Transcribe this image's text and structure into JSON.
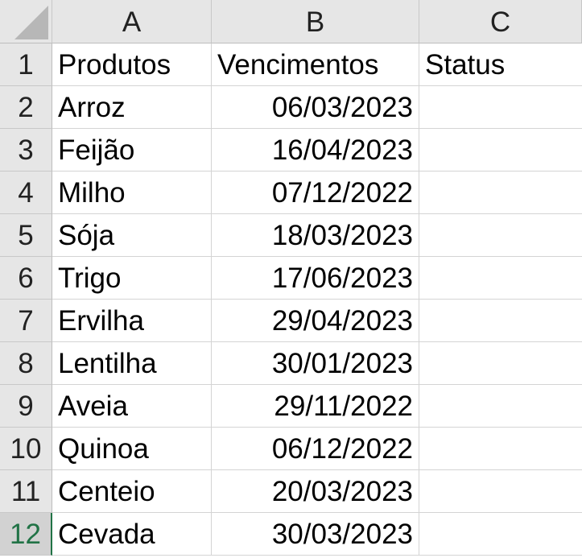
{
  "columns": [
    "A",
    "B",
    "C"
  ],
  "active_row": "12",
  "rows": [
    {
      "num": "1",
      "a": "Produtos",
      "b": "Vencimentos",
      "c": "Status"
    },
    {
      "num": "2",
      "a": "Arroz",
      "b": "06/03/2023",
      "c": ""
    },
    {
      "num": "3",
      "a": "Feijão",
      "b": "16/04/2023",
      "c": ""
    },
    {
      "num": "4",
      "a": "Milho",
      "b": "07/12/2022",
      "c": ""
    },
    {
      "num": "5",
      "a": "Sója",
      "b": "18/03/2023",
      "c": ""
    },
    {
      "num": "6",
      "a": "Trigo",
      "b": "17/06/2023",
      "c": ""
    },
    {
      "num": "7",
      "a": "Ervilha",
      "b": "29/04/2023",
      "c": ""
    },
    {
      "num": "8",
      "a": "Lentilha",
      "b": "30/01/2023",
      "c": ""
    },
    {
      "num": "9",
      "a": "Aveia",
      "b": "29/11/2022",
      "c": ""
    },
    {
      "num": "10",
      "a": "Quinoa",
      "b": "06/12/2022",
      "c": ""
    },
    {
      "num": "11",
      "a": "Centeio",
      "b": "20/03/2023",
      "c": ""
    },
    {
      "num": "12",
      "a": "Cevada",
      "b": "30/03/2023",
      "c": ""
    }
  ]
}
